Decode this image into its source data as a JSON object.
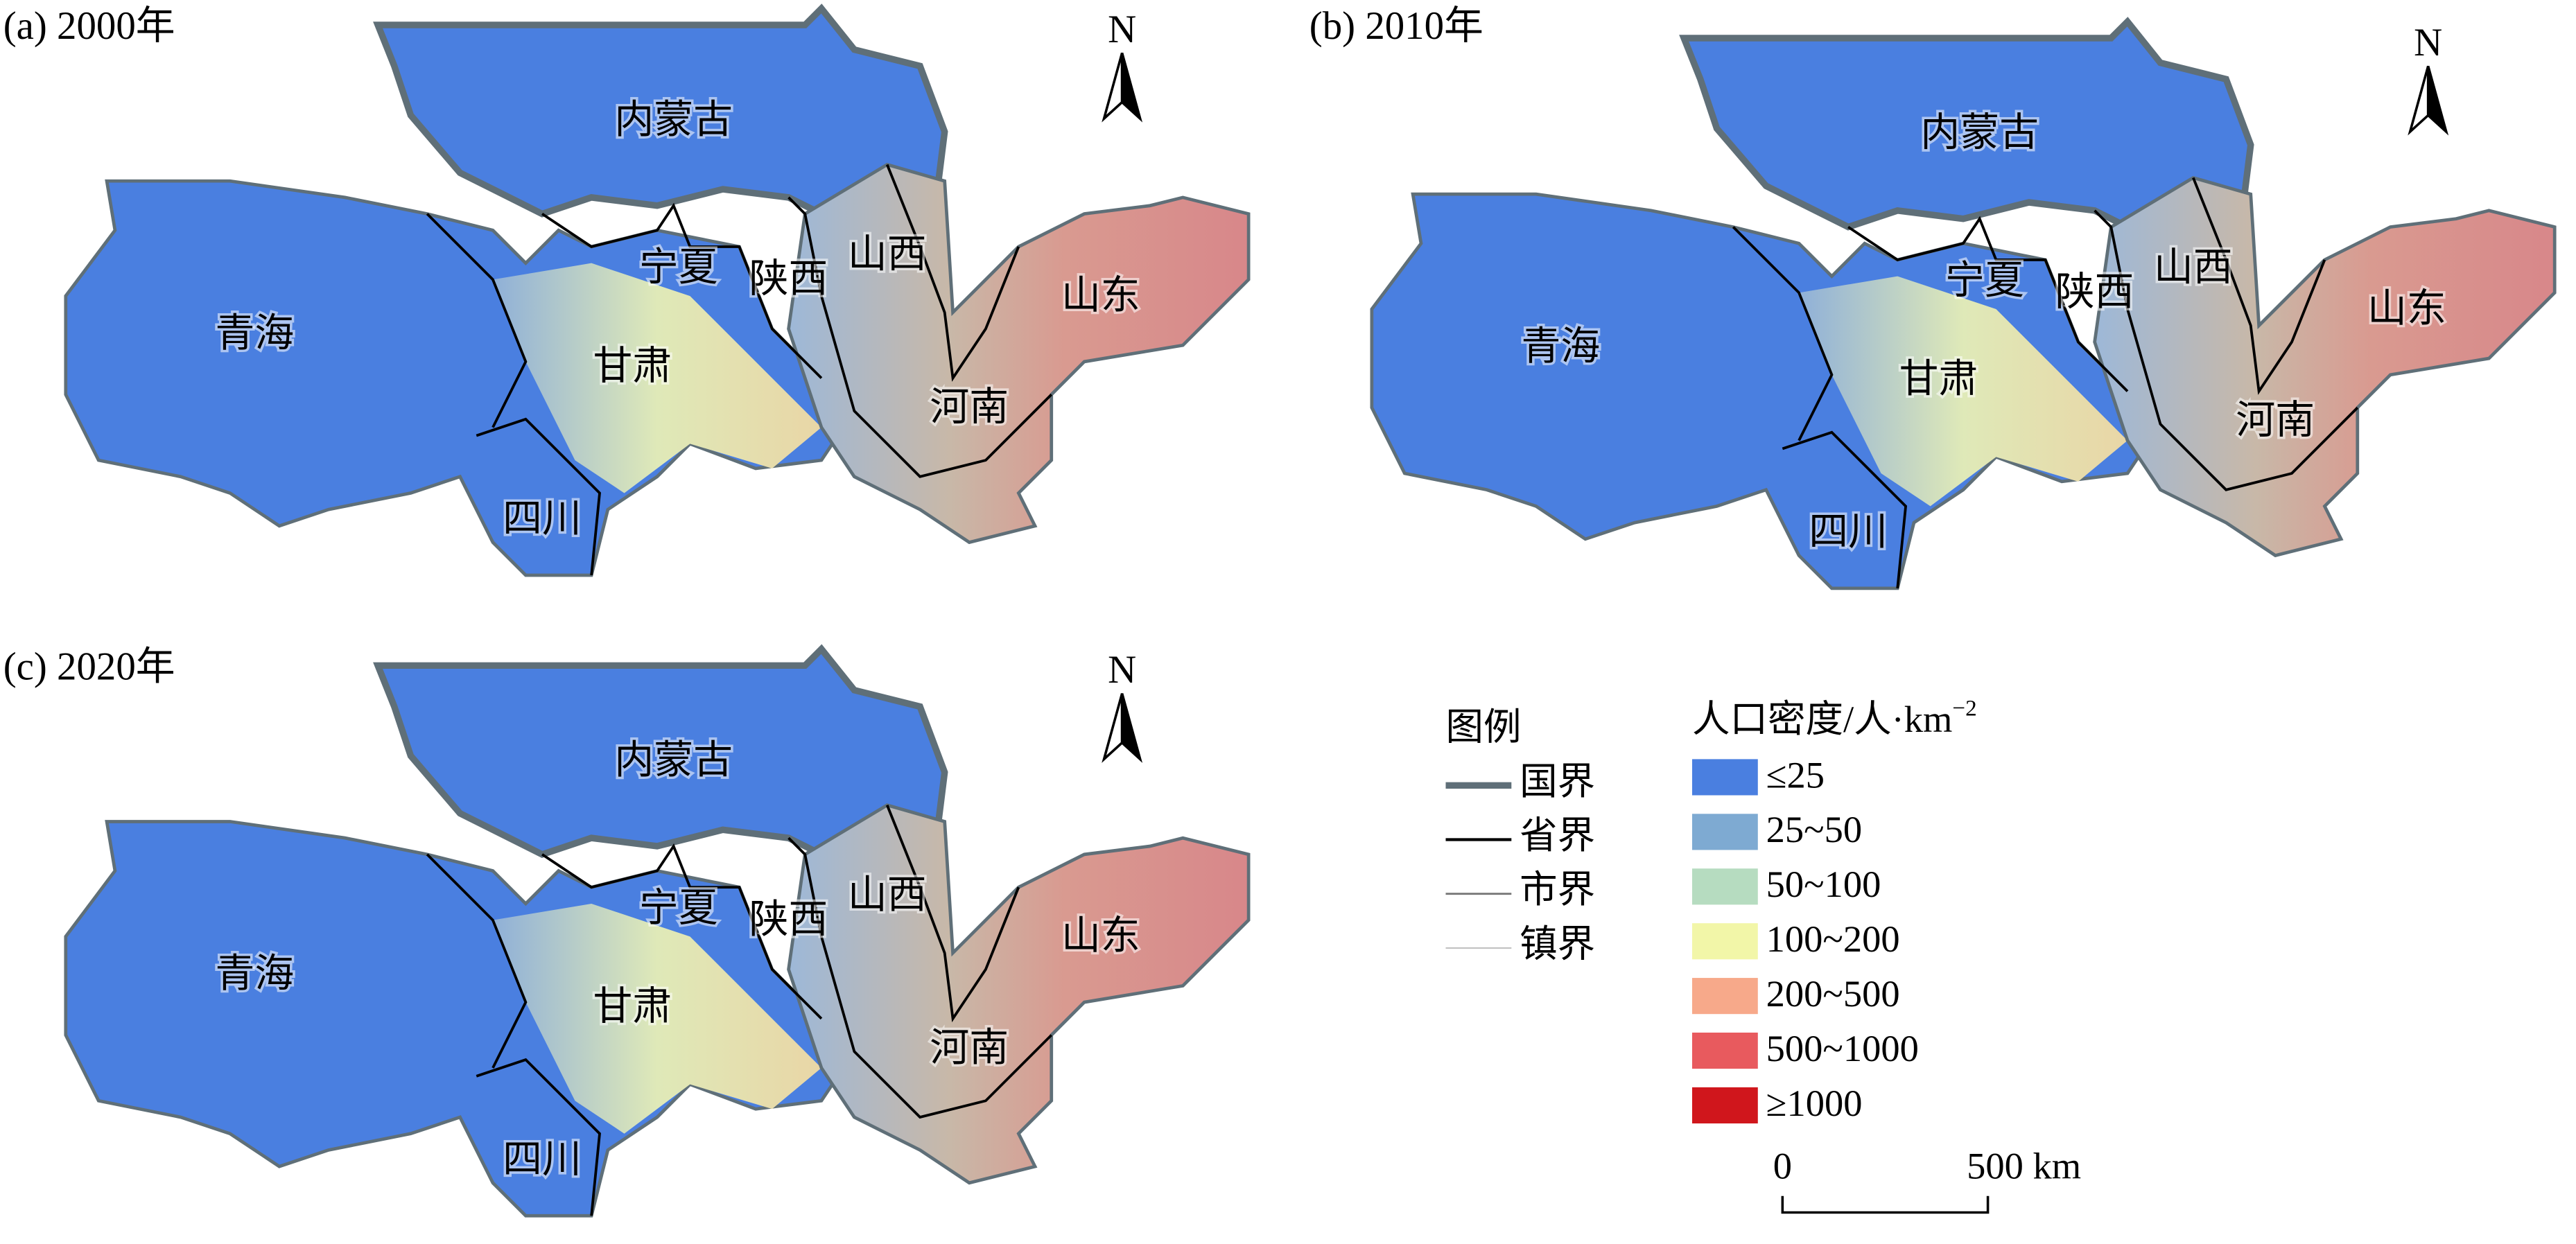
{
  "panels": [
    {
      "title": "(a) 2000年",
      "north": "N",
      "labels": [
        "内蒙古",
        "宁夏",
        "陕西",
        "山西",
        "山东",
        "青海",
        "甘肃",
        "河南",
        "四川"
      ]
    },
    {
      "title": "(b) 2010年",
      "north": "N",
      "labels": [
        "内蒙古",
        "宁夏",
        "陕西",
        "山西",
        "山东",
        "青海",
        "甘肃",
        "河南",
        "四川"
      ]
    },
    {
      "title": "(c) 2020年",
      "north": "N",
      "labels": [
        "内蒙古",
        "宁夏",
        "陕西",
        "山西",
        "山东",
        "青海",
        "甘肃",
        "河南",
        "四川"
      ]
    }
  ],
  "legend": {
    "title": "图例",
    "lines": [
      "国界",
      "省界",
      "市界",
      "镇界"
    ],
    "density_title": "人口密度/人·km",
    "density_title_sup": "−2",
    "classes": [
      {
        "label": "≤25",
        "color": "#4a7fe0"
      },
      {
        "label": "25~50",
        "color": "#7eaad2"
      },
      {
        "label": "50~100",
        "color": "#b6dcc0"
      },
      {
        "label": "100~200",
        "color": "#f2f6a8"
      },
      {
        "label": "200~500",
        "color": "#f7a98a"
      },
      {
        "label": "500~1000",
        "color": "#e85a5e"
      },
      {
        "label": "≥1000",
        "color": "#d0161c"
      }
    ]
  },
  "scale_bar": {
    "labels": [
      "0",
      "500 km"
    ]
  }
}
